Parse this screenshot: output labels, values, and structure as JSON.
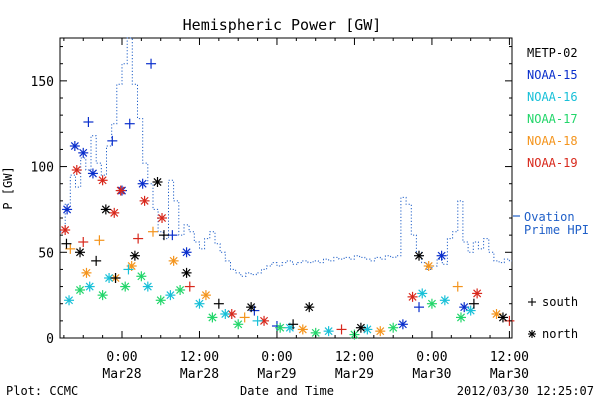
{
  "chart_data": {
    "type": "scatter",
    "title": "Hemispheric Power [GW]",
    "xlabel": "Date and Time",
    "ylabel": "P [GW]",
    "x_unit": "hours",
    "x_ticks": [
      {
        "label": "0:00",
        "sublabel": "Mar28",
        "x": 0
      },
      {
        "label": "12:00",
        "sublabel": "Mar28",
        "x": 12
      },
      {
        "label": "0:00",
        "sublabel": "Mar29",
        "x": 24
      },
      {
        "label": "12:00",
        "sublabel": "Mar29",
        "x": 36
      },
      {
        "label": "0:00",
        "sublabel": "Mar30",
        "x": 48
      },
      {
        "label": "12:00",
        "sublabel": "Mar30",
        "x": 60
      }
    ],
    "xlim": [
      -9.6,
      60.4
    ],
    "ylim": [
      0,
      175
    ],
    "y_ticks": [
      0,
      50,
      100,
      150
    ],
    "legend": [
      {
        "name": "METP-02",
        "color": "#000000"
      },
      {
        "name": "NOAA-15",
        "color": "#0a2fcc"
      },
      {
        "name": "NOAA-16",
        "color": "#18c0d8"
      },
      {
        "name": "NOAA-17",
        "color": "#22d66a"
      },
      {
        "name": "NOAA-18",
        "color": "#f4941c"
      },
      {
        "name": "NOAA-19",
        "color": "#d8281c"
      }
    ],
    "ovation_label_line1": "Ovation",
    "ovation_label_line2": "Prime HPI",
    "ovation_color": "#1f5fc8",
    "marker_legend": [
      {
        "symbol": "+",
        "label": "south"
      },
      {
        "symbol": "*",
        "label": "north"
      }
    ],
    "ovation_series": [
      [
        -9.6,
        62
      ],
      [
        -8.8,
        78
      ],
      [
        -8.0,
        95
      ],
      [
        -7.2,
        88
      ],
      [
        -6.4,
        105
      ],
      [
        -5.6,
        98
      ],
      [
        -4.8,
        118
      ],
      [
        -4.0,
        102
      ],
      [
        -3.2,
        95
      ],
      [
        -2.4,
        112
      ],
      [
        -1.6,
        125
      ],
      [
        -0.8,
        148
      ],
      [
        0.0,
        160
      ],
      [
        0.8,
        175
      ],
      [
        1.6,
        148
      ],
      [
        2.4,
        128
      ],
      [
        3.2,
        102
      ],
      [
        4.0,
        90
      ],
      [
        4.8,
        75
      ],
      [
        5.6,
        62
      ],
      [
        6.4,
        58
      ],
      [
        7.2,
        92
      ],
      [
        8.0,
        80
      ],
      [
        8.8,
        60
      ],
      [
        9.6,
        66
      ],
      [
        10.4,
        62
      ],
      [
        11.2,
        56
      ],
      [
        12.0,
        52
      ],
      [
        12.8,
        58
      ],
      [
        13.6,
        62
      ],
      [
        14.4,
        55
      ],
      [
        15.2,
        50
      ],
      [
        16.0,
        45
      ],
      [
        16.8,
        40
      ],
      [
        17.6,
        38
      ],
      [
        18.4,
        36
      ],
      [
        19.2,
        38
      ],
      [
        20.0,
        37
      ],
      [
        20.8,
        38
      ],
      [
        21.6,
        40
      ],
      [
        22.4,
        42
      ],
      [
        23.2,
        44
      ],
      [
        24.0,
        42
      ],
      [
        24.8,
        44
      ],
      [
        25.6,
        45
      ],
      [
        26.4,
        43
      ],
      [
        27.2,
        44
      ],
      [
        28.0,
        45
      ],
      [
        28.8,
        44
      ],
      [
        29.6,
        45
      ],
      [
        30.4,
        44
      ],
      [
        31.2,
        46
      ],
      [
        32.0,
        45
      ],
      [
        32.8,
        47
      ],
      [
        33.6,
        46
      ],
      [
        34.4,
        47
      ],
      [
        35.2,
        46
      ],
      [
        36.0,
        48
      ],
      [
        36.8,
        47
      ],
      [
        37.6,
        46
      ],
      [
        38.4,
        45
      ],
      [
        39.2,
        47
      ],
      [
        40.0,
        46
      ],
      [
        40.8,
        48
      ],
      [
        41.6,
        47
      ],
      [
        42.4,
        48
      ],
      [
        43.2,
        82
      ],
      [
        44.0,
        78
      ],
      [
        44.8,
        60
      ],
      [
        45.6,
        50
      ],
      [
        46.4,
        44
      ],
      [
        47.2,
        40
      ],
      [
        48.0,
        42
      ],
      [
        48.8,
        46
      ],
      [
        49.6,
        43
      ],
      [
        50.4,
        58
      ],
      [
        51.2,
        62
      ],
      [
        52.0,
        80
      ],
      [
        52.8,
        56
      ],
      [
        53.6,
        50
      ],
      [
        54.4,
        56
      ],
      [
        55.2,
        52
      ],
      [
        56.0,
        58
      ],
      [
        56.8,
        50
      ],
      [
        57.6,
        45
      ],
      [
        58.4,
        44
      ],
      [
        59.2,
        46
      ],
      [
        60.0,
        45
      ]
    ],
    "points": [
      {
        "sat": "NOAA-15",
        "m": "*",
        "x": -8.5,
        "y": 75
      },
      {
        "sat": "NOAA-15",
        "m": "*",
        "x": -7.3,
        "y": 112
      },
      {
        "sat": "NOAA-15",
        "m": "*",
        "x": -6.0,
        "y": 108
      },
      {
        "sat": "NOAA-15",
        "m": "+",
        "x": -5.2,
        "y": 126
      },
      {
        "sat": "NOAA-15",
        "m": "*",
        "x": -4.5,
        "y": 96
      },
      {
        "sat": "NOAA-15",
        "m": "+",
        "x": -1.5,
        "y": 115
      },
      {
        "sat": "NOAA-15",
        "m": "*",
        "x": 0.0,
        "y": 86
      },
      {
        "sat": "NOAA-15",
        "m": "+",
        "x": 1.2,
        "y": 125
      },
      {
        "sat": "NOAA-15",
        "m": "*",
        "x": 3.2,
        "y": 90
      },
      {
        "sat": "NOAA-15",
        "m": "+",
        "x": 4.5,
        "y": 160
      },
      {
        "sat": "NOAA-15",
        "m": "+",
        "x": 7.8,
        "y": 60
      },
      {
        "sat": "NOAA-15",
        "m": "*",
        "x": 10.0,
        "y": 50
      },
      {
        "sat": "NOAA-15",
        "m": "+",
        "x": 20.5,
        "y": 16
      },
      {
        "sat": "NOAA-15",
        "m": "+",
        "x": 24.0,
        "y": 7
      },
      {
        "sat": "NOAA-15",
        "m": "*",
        "x": 43.5,
        "y": 8
      },
      {
        "sat": "NOAA-15",
        "m": "+",
        "x": 46.0,
        "y": 18
      },
      {
        "sat": "NOAA-15",
        "m": "*",
        "x": 49.5,
        "y": 48
      },
      {
        "sat": "NOAA-15",
        "m": "*",
        "x": 53.0,
        "y": 18
      },
      {
        "sat": "NOAA-19",
        "m": "*",
        "x": -8.8,
        "y": 63
      },
      {
        "sat": "NOAA-19",
        "m": "*",
        "x": -7.0,
        "y": 98
      },
      {
        "sat": "NOAA-19",
        "m": "+",
        "x": -6.0,
        "y": 56
      },
      {
        "sat": "NOAA-19",
        "m": "*",
        "x": -3.0,
        "y": 92
      },
      {
        "sat": "NOAA-19",
        "m": "*",
        "x": -1.2,
        "y": 73
      },
      {
        "sat": "NOAA-19",
        "m": "*",
        "x": -0.2,
        "y": 86
      },
      {
        "sat": "NOAA-19",
        "m": "+",
        "x": 2.5,
        "y": 58
      },
      {
        "sat": "NOAA-19",
        "m": "*",
        "x": 3.5,
        "y": 80
      },
      {
        "sat": "NOAA-19",
        "m": "*",
        "x": 6.2,
        "y": 70
      },
      {
        "sat": "NOAA-19",
        "m": "+",
        "x": 10.5,
        "y": 30
      },
      {
        "sat": "NOAA-19",
        "m": "*",
        "x": 17.0,
        "y": 14
      },
      {
        "sat": "NOAA-19",
        "m": "*",
        "x": 22.0,
        "y": 10
      },
      {
        "sat": "NOAA-19",
        "m": "+",
        "x": 34.0,
        "y": 5
      },
      {
        "sat": "NOAA-19",
        "m": "*",
        "x": 45.0,
        "y": 24
      },
      {
        "sat": "NOAA-19",
        "m": "*",
        "x": 55.0,
        "y": 26
      },
      {
        "sat": "NOAA-19",
        "m": "+",
        "x": 60.0,
        "y": 10
      },
      {
        "sat": "NOAA-18",
        "m": "+",
        "x": -8.0,
        "y": 52
      },
      {
        "sat": "NOAA-18",
        "m": "*",
        "x": -5.5,
        "y": 38
      },
      {
        "sat": "NOAA-18",
        "m": "+",
        "x": -3.5,
        "y": 57
      },
      {
        "sat": "NOAA-18",
        "m": "*",
        "x": -1.0,
        "y": 35
      },
      {
        "sat": "NOAA-18",
        "m": "*",
        "x": 1.5,
        "y": 42
      },
      {
        "sat": "NOAA-18",
        "m": "+",
        "x": 4.8,
        "y": 62
      },
      {
        "sat": "NOAA-18",
        "m": "*",
        "x": 8.0,
        "y": 45
      },
      {
        "sat": "NOAA-18",
        "m": "*",
        "x": 13.0,
        "y": 25
      },
      {
        "sat": "NOAA-18",
        "m": "+",
        "x": 19.0,
        "y": 12
      },
      {
        "sat": "NOAA-18",
        "m": "*",
        "x": 28.0,
        "y": 5
      },
      {
        "sat": "NOAA-18",
        "m": "*",
        "x": 40.0,
        "y": 4
      },
      {
        "sat": "NOAA-18",
        "m": "*",
        "x": 47.5,
        "y": 42
      },
      {
        "sat": "NOAA-18",
        "m": "+",
        "x": 52.0,
        "y": 30
      },
      {
        "sat": "NOAA-18",
        "m": "*",
        "x": 58.0,
        "y": 14
      },
      {
        "sat": "NOAA-16",
        "m": "*",
        "x": -8.2,
        "y": 22
      },
      {
        "sat": "NOAA-16",
        "m": "*",
        "x": -5.0,
        "y": 30
      },
      {
        "sat": "NOAA-16",
        "m": "*",
        "x": -2.0,
        "y": 35
      },
      {
        "sat": "NOAA-16",
        "m": "+",
        "x": 1.0,
        "y": 40
      },
      {
        "sat": "NOAA-16",
        "m": "*",
        "x": 4.0,
        "y": 30
      },
      {
        "sat": "NOAA-16",
        "m": "*",
        "x": 7.5,
        "y": 25
      },
      {
        "sat": "NOAA-16",
        "m": "*",
        "x": 12.0,
        "y": 20
      },
      {
        "sat": "NOAA-16",
        "m": "*",
        "x": 16.0,
        "y": 14
      },
      {
        "sat": "NOAA-16",
        "m": "+",
        "x": 21.0,
        "y": 10
      },
      {
        "sat": "NOAA-16",
        "m": "*",
        "x": 26.0,
        "y": 6
      },
      {
        "sat": "NOAA-16",
        "m": "*",
        "x": 32.0,
        "y": 4
      },
      {
        "sat": "NOAA-16",
        "m": "*",
        "x": 38.0,
        "y": 5
      },
      {
        "sat": "NOAA-16",
        "m": "*",
        "x": 46.5,
        "y": 26
      },
      {
        "sat": "NOAA-16",
        "m": "*",
        "x": 50.0,
        "y": 22
      },
      {
        "sat": "NOAA-16",
        "m": "*",
        "x": 54.0,
        "y": 16
      },
      {
        "sat": "NOAA-17",
        "m": "*",
        "x": -6.5,
        "y": 28
      },
      {
        "sat": "NOAA-17",
        "m": "*",
        "x": -3.0,
        "y": 25
      },
      {
        "sat": "NOAA-17",
        "m": "*",
        "x": 0.5,
        "y": 30
      },
      {
        "sat": "NOAA-17",
        "m": "*",
        "x": 3.0,
        "y": 36
      },
      {
        "sat": "NOAA-17",
        "m": "*",
        "x": 6.0,
        "y": 22
      },
      {
        "sat": "NOAA-17",
        "m": "*",
        "x": 9.0,
        "y": 28
      },
      {
        "sat": "NOAA-17",
        "m": "*",
        "x": 14.0,
        "y": 12
      },
      {
        "sat": "NOAA-17",
        "m": "*",
        "x": 18.0,
        "y": 8
      },
      {
        "sat": "NOAA-17",
        "m": "*",
        "x": 24.5,
        "y": 6
      },
      {
        "sat": "NOAA-17",
        "m": "*",
        "x": 30.0,
        "y": 3
      },
      {
        "sat": "NOAA-17",
        "m": "*",
        "x": 36.0,
        "y": 2
      },
      {
        "sat": "NOAA-17",
        "m": "*",
        "x": 42.0,
        "y": 6
      },
      {
        "sat": "NOAA-17",
        "m": "*",
        "x": 48.0,
        "y": 20
      },
      {
        "sat": "NOAA-17",
        "m": "*",
        "x": 52.5,
        "y": 12
      },
      {
        "sat": "METP-02",
        "m": "+",
        "x": -8.6,
        "y": 55
      },
      {
        "sat": "METP-02",
        "m": "*",
        "x": -6.5,
        "y": 50
      },
      {
        "sat": "METP-02",
        "m": "+",
        "x": -4.0,
        "y": 45
      },
      {
        "sat": "METP-02",
        "m": "*",
        "x": -2.5,
        "y": 75
      },
      {
        "sat": "METP-02",
        "m": "+",
        "x": -1.0,
        "y": 35
      },
      {
        "sat": "METP-02",
        "m": "*",
        "x": 2.0,
        "y": 48
      },
      {
        "sat": "METP-02",
        "m": "*",
        "x": 5.5,
        "y": 91
      },
      {
        "sat": "METP-02",
        "m": "+",
        "x": 6.5,
        "y": 60
      },
      {
        "sat": "METP-02",
        "m": "*",
        "x": 10.0,
        "y": 38
      },
      {
        "sat": "METP-02",
        "m": "+",
        "x": 15.0,
        "y": 20
      },
      {
        "sat": "METP-02",
        "m": "*",
        "x": 20.0,
        "y": 18
      },
      {
        "sat": "METP-02",
        "m": "+",
        "x": 26.5,
        "y": 8
      },
      {
        "sat": "METP-02",
        "m": "*",
        "x": 29.0,
        "y": 18
      },
      {
        "sat": "METP-02",
        "m": "*",
        "x": 37.0,
        "y": 6
      },
      {
        "sat": "METP-02",
        "m": "*",
        "x": 46.0,
        "y": 48
      },
      {
        "sat": "METP-02",
        "m": "+",
        "x": 54.5,
        "y": 20
      },
      {
        "sat": "METP-02",
        "m": "*",
        "x": 59.0,
        "y": 12
      }
    ]
  },
  "footer": {
    "plot_credit": "Plot: CCMC",
    "timestamp": "2012/03/30 12:25:07"
  }
}
